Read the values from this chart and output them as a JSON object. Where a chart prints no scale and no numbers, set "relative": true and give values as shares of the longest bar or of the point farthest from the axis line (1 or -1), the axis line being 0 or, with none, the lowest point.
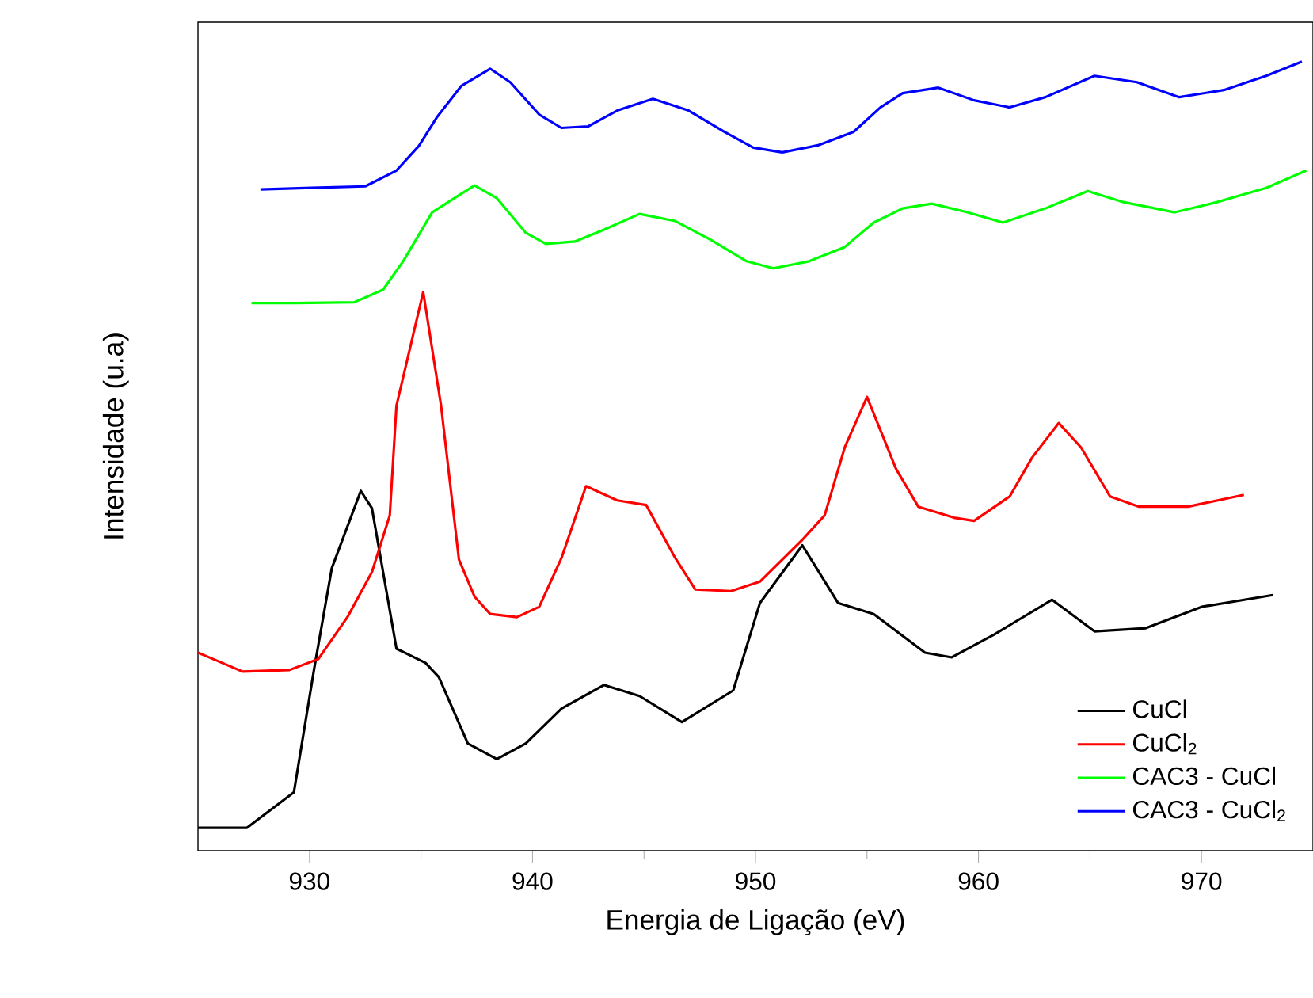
{
  "chart_data": {
    "type": "line",
    "relative": true,
    "xlabel": "Energia de Ligação (eV)",
    "ylabel": "Intensidade (u.a)",
    "xlim": [
      925,
      975
    ],
    "xticks": [
      930,
      940,
      950,
      960,
      970
    ],
    "legend": "bottom right",
    "marker": "none",
    "line_style": "solid",
    "series": [
      {
        "name": "CuCl",
        "color": "#000000",
        "x": [
          925.0,
          927.2,
          929.3,
          930.2,
          931.0,
          932.3,
          932.8,
          933.9,
          935.2,
          935.8,
          937.1,
          938.4,
          939.7,
          941.3,
          943.2,
          944.8,
          946.7,
          949.0,
          950.2,
          952.1,
          953.7,
          955.3,
          957.6,
          958.8,
          960.7,
          963.3,
          965.2,
          967.5,
          970.0,
          973.2
        ],
        "values": [
          0.029,
          0.029,
          0.074,
          0.229,
          0.358,
          0.456,
          0.434,
          0.256,
          0.238,
          0.22,
          0.136,
          0.116,
          0.136,
          0.18,
          0.21,
          0.196,
          0.163,
          0.203,
          0.314,
          0.387,
          0.314,
          0.3,
          0.251,
          0.245,
          0.274,
          0.318,
          0.278,
          0.282,
          0.309,
          0.324
        ]
      },
      {
        "name": "CuCl$_{2}$",
        "color": "#ff0000",
        "x": [
          925.0,
          927.0,
          929.1,
          930.4,
          931.7,
          932.8,
          933.6,
          933.9,
          935.1,
          935.9,
          936.7,
          937.4,
          938.1,
          939.3,
          940.3,
          941.3,
          942.4,
          943.8,
          945.1,
          946.4,
          947.3,
          948.9,
          950.2,
          952.1,
          953.1,
          954.0,
          955.0,
          956.3,
          957.3,
          958.9,
          959.8,
          961.4,
          962.4,
          963.6,
          964.6,
          965.9,
          967.2,
          969.4,
          971.9
        ],
        "values": [
          0.251,
          0.227,
          0.229,
          0.243,
          0.296,
          0.353,
          0.425,
          0.564,
          0.708,
          0.564,
          0.369,
          0.322,
          0.3,
          0.296,
          0.309,
          0.371,
          0.462,
          0.444,
          0.438,
          0.371,
          0.331,
          0.329,
          0.341,
          0.394,
          0.425,
          0.511,
          0.575,
          0.484,
          0.436,
          0.422,
          0.418,
          0.449,
          0.498,
          0.542,
          0.511,
          0.449,
          0.436,
          0.436,
          0.451
        ]
      },
      {
        "name": "CAC3 - CuCl",
        "color": "#00ff00",
        "x": [
          927.4,
          929.4,
          932.0,
          933.3,
          934.2,
          935.5,
          936.5,
          937.4,
          938.4,
          939.7,
          940.6,
          941.9,
          943.2,
          944.8,
          946.4,
          948.0,
          949.6,
          950.8,
          952.4,
          954.0,
          955.3,
          956.6,
          957.9,
          959.5,
          961.1,
          963.0,
          964.9,
          966.5,
          968.8,
          970.7,
          972.9,
          974.7
        ],
        "values": [
          0.694,
          0.694,
          0.695,
          0.711,
          0.747,
          0.809,
          0.827,
          0.843,
          0.827,
          0.783,
          0.769,
          0.772,
          0.787,
          0.807,
          0.798,
          0.774,
          0.747,
          0.738,
          0.747,
          0.765,
          0.796,
          0.814,
          0.82,
          0.809,
          0.796,
          0.814,
          0.836,
          0.822,
          0.809,
          0.822,
          0.84,
          0.862
        ]
      },
      {
        "name": "CAC3 - CuCl$_{2}$",
        "color": "#0000ff",
        "x": [
          927.8,
          930.1,
          932.5,
          933.9,
          934.9,
          935.7,
          936.8,
          938.1,
          939.0,
          940.3,
          941.3,
          942.5,
          943.8,
          945.4,
          947.0,
          948.6,
          949.9,
          951.2,
          952.8,
          954.4,
          955.6,
          956.6,
          958.2,
          959.8,
          961.4,
          963.0,
          965.2,
          967.1,
          969.0,
          971.0,
          972.9,
          974.5
        ],
        "values": [
          0.838,
          0.84,
          0.842,
          0.862,
          0.893,
          0.929,
          0.969,
          0.991,
          0.974,
          0.933,
          0.916,
          0.918,
          0.938,
          0.953,
          0.938,
          0.911,
          0.891,
          0.885,
          0.894,
          0.911,
          0.942,
          0.96,
          0.967,
          0.951,
          0.942,
          0.955,
          0.982,
          0.974,
          0.955,
          0.964,
          0.982,
          1.0
        ]
      }
    ]
  }
}
